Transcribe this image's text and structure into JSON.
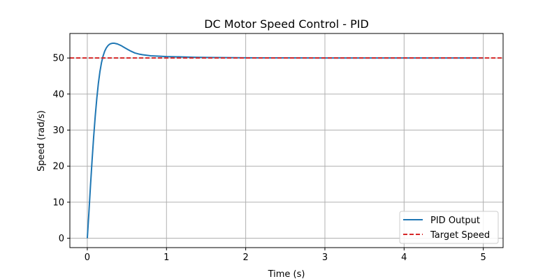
{
  "chart_data": {
    "type": "line",
    "title": "DC Motor Speed Control - PID",
    "xlabel": "Time (s)",
    "ylabel": "Speed (rad/s)",
    "xlim": [
      -0.22,
      5.25
    ],
    "ylim": [
      -2.6,
      56.8
    ],
    "xticks": [
      0,
      1,
      2,
      3,
      4,
      5
    ],
    "yticks": [
      0,
      10,
      20,
      30,
      40,
      50
    ],
    "grid": true,
    "legend_position": "bottom-right",
    "series": [
      {
        "name": "PID Output",
        "color": "#1f77b4",
        "style": "solid",
        "x": [
          0,
          0.02,
          0.04,
          0.06,
          0.08,
          0.1,
          0.12,
          0.14,
          0.16,
          0.18,
          0.2,
          0.22,
          0.24,
          0.26,
          0.28,
          0.3,
          0.32,
          0.34,
          0.36,
          0.38,
          0.4,
          0.43,
          0.46,
          0.5,
          0.55,
          0.6,
          0.65,
          0.7,
          0.8,
          0.9,
          1.0,
          1.1,
          1.2,
          1.35,
          1.5,
          1.75,
          2.0,
          2.5,
          3.0,
          3.5,
          4.0,
          4.5,
          5.0
        ],
        "y": [
          0,
          7.0,
          14.5,
          21.5,
          28.0,
          33.8,
          38.8,
          43.0,
          46.3,
          48.8,
          50.6,
          51.9,
          52.8,
          53.4,
          53.8,
          54.0,
          54.1,
          54.1,
          54.0,
          53.9,
          53.7,
          53.4,
          53.0,
          52.5,
          51.9,
          51.4,
          51.1,
          50.9,
          50.6,
          50.5,
          50.4,
          50.35,
          50.3,
          50.2,
          50.15,
          50.1,
          50.05,
          50.02,
          50.0,
          50.0,
          50.0,
          50.0,
          50.0
        ]
      },
      {
        "name": "Target Speed",
        "color": "#d62728",
        "style": "dashed",
        "y_constant": 50
      }
    ]
  }
}
